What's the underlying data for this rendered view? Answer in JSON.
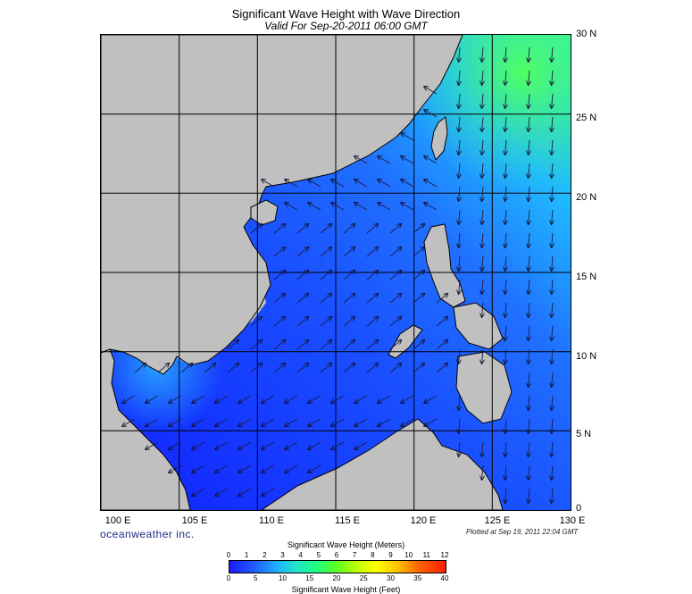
{
  "header": {
    "title": "Significant Wave Height with Wave Direction",
    "subtitle": "Valid For Sep-20-2011 06:00 GMT"
  },
  "map": {
    "region": "South China Sea",
    "lon_range": [
      100,
      130
    ],
    "lat_range": [
      0,
      30
    ],
    "lat_labels": [
      "30 N",
      "25 N",
      "20 N",
      "15 N",
      "10 N",
      "5 N",
      "0"
    ],
    "lon_labels": [
      "100 E",
      "105 E",
      "110 E",
      "115 E",
      "120 E",
      "125 E",
      "130 E"
    ],
    "colors": {
      "land": "#c0c0c0",
      "sea_low": "#1530ff",
      "sea_mid": "#2288ff",
      "sea_high": "#40ff90",
      "arrow": "#1a1a40"
    }
  },
  "footer": {
    "brand": "oceanweather inc.",
    "plotted": "Plotted at Sep 19, 2011 22:04 GMT"
  },
  "colorbar": {
    "title_meters": "Significant Wave Height (Meters)",
    "title_feet": "Significant Wave Height (Feet)",
    "meters_ticks": [
      "0",
      "1",
      "2",
      "3",
      "4",
      "5",
      "6",
      "7",
      "8",
      "9",
      "10",
      "11",
      "12"
    ],
    "feet_ticks": [
      "0",
      "5",
      "10",
      "15",
      "20",
      "25",
      "30",
      "35",
      "40"
    ]
  }
}
